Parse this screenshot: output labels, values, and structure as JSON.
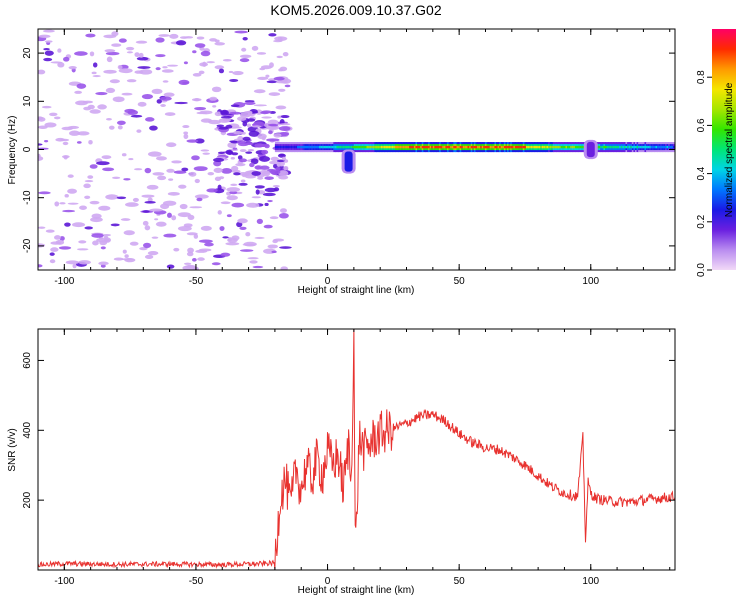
{
  "title": "KOM5.2026.009.10.37.G02",
  "colors": {
    "series": "#e8322f",
    "blob_light": "#cfa8f2",
    "blob_mid": "#9a55ea",
    "blob_dark": "#5c17d6",
    "axis": "#000000",
    "background": "#ffffff"
  },
  "chart_data": [
    {
      "type": "heatmap",
      "title": "KOM5.2026.009.10.37.G02",
      "xlabel": "Height of straight line (km)",
      "ylabel": "Frequency (Hz)",
      "xlim": [
        -110,
        132
      ],
      "ylim": [
        -25,
        25
      ],
      "xticks": [
        -100,
        -50,
        0,
        50,
        100
      ],
      "yticks": [
        -20,
        -10,
        0,
        10,
        20
      ],
      "xtick_labels": [
        "-100",
        "-50",
        "0",
        "50",
        "100"
      ],
      "ytick_labels": [
        "-20",
        "-10",
        "0",
        "10",
        "20"
      ],
      "colorbar": {
        "label": "Normalized spectral amplitude",
        "range": [
          0,
          1
        ],
        "ticks": [
          0.0,
          0.2,
          0.4,
          0.6,
          0.8
        ],
        "tick_labels": [
          "0.0",
          "0.2",
          "0.4",
          "0.6",
          "0.8"
        ],
        "colors": [
          "#f2d9f7",
          "#b98cf0",
          "#6a1fe0",
          "#1a1ae6",
          "#0077ff",
          "#00d4e6",
          "#00e676",
          "#33e600",
          "#a6e600",
          "#f5e600",
          "#ff9a00",
          "#ff2a00",
          "#ff0066"
        ]
      },
      "ridge": {
        "frequency_hz": 0.5,
        "x_start_km": -20,
        "x_end_km": 132,
        "peak_region_km": [
          30,
          75
        ],
        "features": [
          {
            "x_km": 8,
            "freq_range_hz": [
              -5,
              0
            ],
            "amplitude": 0.25
          },
          {
            "x_km": 100,
            "freq_range_hz": [
              -2,
              2
            ],
            "amplitude": 0.2
          }
        ]
      }
    },
    {
      "type": "line",
      "xlabel": "Height of straight line (km)",
      "ylabel": "SNR (v/v)",
      "xlim": [
        -110,
        132
      ],
      "ylim": [
        0,
        690
      ],
      "xticks": [
        -100,
        -50,
        0,
        50,
        100
      ],
      "yticks": [
        200,
        400,
        600
      ],
      "xtick_labels": [
        "-100",
        "-50",
        "0",
        "50",
        "100"
      ],
      "ytick_labels": [
        "200",
        "400",
        "600"
      ],
      "series": [
        {
          "name": "SNR",
          "x": [
            -110,
            -100,
            -80,
            -60,
            -40,
            -25,
            -20,
            -18,
            -16,
            -14,
            -12,
            -10,
            -8,
            -6,
            -4,
            -2,
            0,
            2,
            4,
            6,
            8,
            9,
            10,
            10.5,
            11,
            12,
            14,
            16,
            18,
            20,
            25,
            30,
            35,
            40,
            45,
            50,
            55,
            60,
            65,
            70,
            75,
            80,
            85,
            90,
            95,
            97,
            98,
            99,
            100,
            102,
            105,
            110,
            115,
            120,
            125,
            132
          ],
          "y": [
            15,
            18,
            16,
            17,
            15,
            18,
            20,
            210,
            260,
            180,
            290,
            230,
            300,
            260,
            320,
            270,
            340,
            300,
            330,
            230,
            360,
            250,
            690,
            90,
            120,
            380,
            340,
            360,
            380,
            390,
            405,
            420,
            440,
            445,
            425,
            390,
            365,
            350,
            345,
            325,
            300,
            270,
            240,
            220,
            210,
            380,
            90,
            250,
            220,
            205,
            200,
            195,
            195,
            200,
            205,
            210
          ]
        }
      ]
    }
  ]
}
